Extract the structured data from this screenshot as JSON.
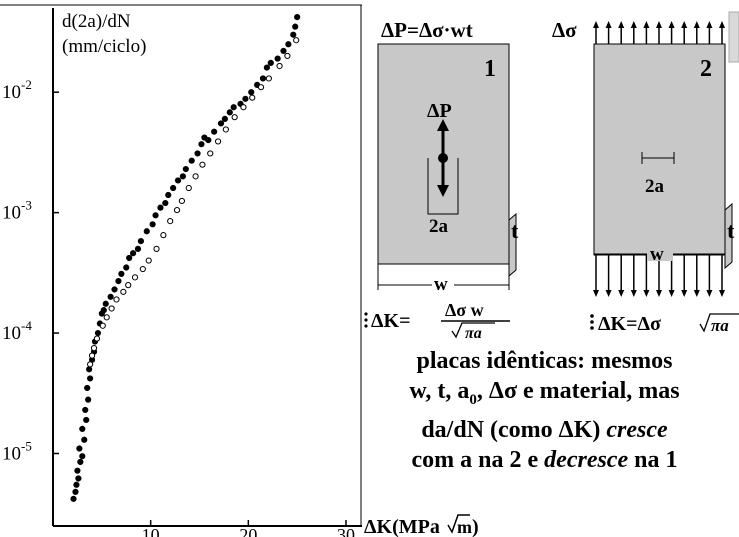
{
  "chart_data": {
    "type": "scatter",
    "ylabel_line1": "d(2a)/dN",
    "ylabel_line2": "(mm/ciclo)",
    "xlabel_main": "ΔK(MPa",
    "xlabel_root": "m",
    "xlabel_close": ")",
    "x_scale": "linear",
    "y_scale": "log",
    "xlim": [
      0,
      30
    ],
    "ylim": [
      2.5e-06,
      0.05
    ],
    "x_ticks": [
      {
        "value": 10,
        "label": "10"
      },
      {
        "value": 20,
        "label": "20"
      },
      {
        "value": 30,
        "label": "30"
      }
    ],
    "y_ticks": [
      {
        "value": 0.01,
        "base": "10",
        "exp": "-2"
      },
      {
        "value": 0.001,
        "base": "10",
        "exp": "-3"
      },
      {
        "value": 0.0001,
        "base": "10",
        "exp": "-4"
      },
      {
        "value": 1e-05,
        "base": "10",
        "exp": "-5"
      }
    ],
    "series": [
      {
        "marker": "filled",
        "points": [
          [
            2.1,
            4.2e-06
          ],
          [
            2.3,
            4.8e-06
          ],
          [
            2.4,
            5.5e-06
          ],
          [
            2.6,
            6.2e-06
          ],
          [
            2.5,
            7.2e-06
          ],
          [
            2.8,
            8.5e-06
          ],
          [
            3.0,
            9.5e-06
          ],
          [
            2.7,
            1.1e-05
          ],
          [
            3.2,
            1.3e-05
          ],
          [
            3.0,
            1.6e-05
          ],
          [
            3.4,
            1.9e-05
          ],
          [
            3.3,
            2.3e-05
          ],
          [
            3.6,
            2.8e-05
          ],
          [
            3.5,
            3.5e-05
          ],
          [
            3.8,
            4.2e-05
          ],
          [
            3.7,
            5e-05
          ],
          [
            4.0,
            6e-05
          ],
          [
            4.2,
            7e-05
          ],
          [
            4.3,
            8.5e-05
          ],
          [
            4.6,
            0.0001
          ],
          [
            4.8,
            0.00012
          ],
          [
            5.0,
            0.000145
          ],
          [
            5.4,
            0.000175
          ],
          [
            5.2,
            0.000155
          ],
          [
            5.9,
            0.0002
          ],
          [
            6.3,
            0.00023
          ],
          [
            6.7,
            0.00027
          ],
          [
            7.0,
            0.00031
          ],
          [
            7.5,
            0.00035
          ],
          [
            7.8,
            0.00042
          ],
          [
            8.2,
            0.00046
          ],
          [
            8.7,
            0.0005
          ],
          [
            9.0,
            0.00058
          ],
          [
            9.6,
            0.0007
          ],
          [
            10.2,
            0.0008
          ],
          [
            10.5,
            0.00095
          ],
          [
            11.0,
            0.0011
          ],
          [
            11.5,
            0.0012
          ],
          [
            11.8,
            0.0014
          ],
          [
            12.3,
            0.0016
          ],
          [
            12.8,
            0.00185
          ],
          [
            13.3,
            0.002
          ],
          [
            13.6,
            0.0023
          ],
          [
            14.2,
            0.0027
          ],
          [
            14.8,
            0.0031
          ],
          [
            15.2,
            0.0037
          ],
          [
            15.5,
            0.0042
          ],
          [
            15.9,
            0.004
          ],
          [
            16.5,
            0.0047
          ],
          [
            17.2,
            0.0055
          ],
          [
            17.6,
            0.006
          ],
          [
            18.1,
            0.0068
          ],
          [
            18.5,
            0.0075
          ],
          [
            19.2,
            0.008
          ],
          [
            19.7,
            0.0088
          ],
          [
            20.3,
            0.01
          ],
          [
            20.9,
            0.0115
          ],
          [
            21.5,
            0.013
          ],
          [
            21.9,
            0.016
          ],
          [
            22.3,
            0.0175
          ],
          [
            23.0,
            0.019
          ],
          [
            23.6,
            0.022
          ],
          [
            24.1,
            0.025
          ],
          [
            24.6,
            0.03
          ],
          [
            24.8,
            0.035
          ],
          [
            25.0,
            0.042
          ]
        ]
      },
      {
        "marker": "open",
        "points": [
          [
            3.8,
            5.5e-05
          ],
          [
            4.0,
            6.5e-05
          ],
          [
            4.2,
            7.5e-05
          ],
          [
            4.5,
            9e-05
          ],
          [
            5.1,
            0.000115
          ],
          [
            5.5,
            0.000135
          ],
          [
            6.0,
            0.00016
          ],
          [
            6.5,
            0.00019
          ],
          [
            7.2,
            0.00022
          ],
          [
            7.7,
            0.00025
          ],
          [
            8.4,
            0.00029
          ],
          [
            9.2,
            0.00034
          ],
          [
            9.8,
            0.0004
          ],
          [
            10.6,
            0.0005
          ],
          [
            11.3,
            0.00065
          ],
          [
            12.0,
            0.00085
          ],
          [
            12.7,
            0.00105
          ],
          [
            13.2,
            0.00125
          ],
          [
            13.9,
            0.0016
          ],
          [
            14.6,
            0.002
          ],
          [
            15.3,
            0.0025
          ],
          [
            16.1,
            0.0031
          ],
          [
            16.9,
            0.0039
          ],
          [
            17.7,
            0.0049
          ],
          [
            18.6,
            0.0062
          ],
          [
            19.5,
            0.0075
          ],
          [
            20.4,
            0.009
          ],
          [
            21.3,
            0.011
          ],
          [
            22.1,
            0.013
          ],
          [
            23.2,
            0.0165
          ],
          [
            24.0,
            0.02
          ],
          [
            24.9,
            0.027
          ]
        ]
      }
    ]
  },
  "diagram": {
    "plate1": {
      "formula_top": "ΔP=Δσ·wt",
      "number": "1",
      "load_label": "ΔP",
      "crack_label": "2a",
      "thickness_label": "t",
      "width_label": "w",
      "k_lhs": "ΔK=",
      "k_numerator": "Δσ w",
      "k_denominator": "πa"
    },
    "plate2": {
      "stress_label": "Δσ",
      "number": "2",
      "crack_label": "2a",
      "thickness_label": "t",
      "width_label": "w",
      "k_formula": "ΔK=Δσ",
      "k_root": "πa"
    }
  },
  "caption": {
    "line1": "placas idênticas: mesmos",
    "line2_pre": "w, t, a",
    "line2_sub": "0",
    "line2_post": ", Δσ e material, mas",
    "line3_pre": "da/dN (como ΔK) ",
    "line3_em": "cresce",
    "line4_pre": "com a na 2 e ",
    "line4_em": "decresce",
    "line4_post": " na 1"
  },
  "colors": {
    "plate_fill": "#c8c8c8",
    "ink": "#000000",
    "scroll_thumb": "#d9d9d9"
  }
}
